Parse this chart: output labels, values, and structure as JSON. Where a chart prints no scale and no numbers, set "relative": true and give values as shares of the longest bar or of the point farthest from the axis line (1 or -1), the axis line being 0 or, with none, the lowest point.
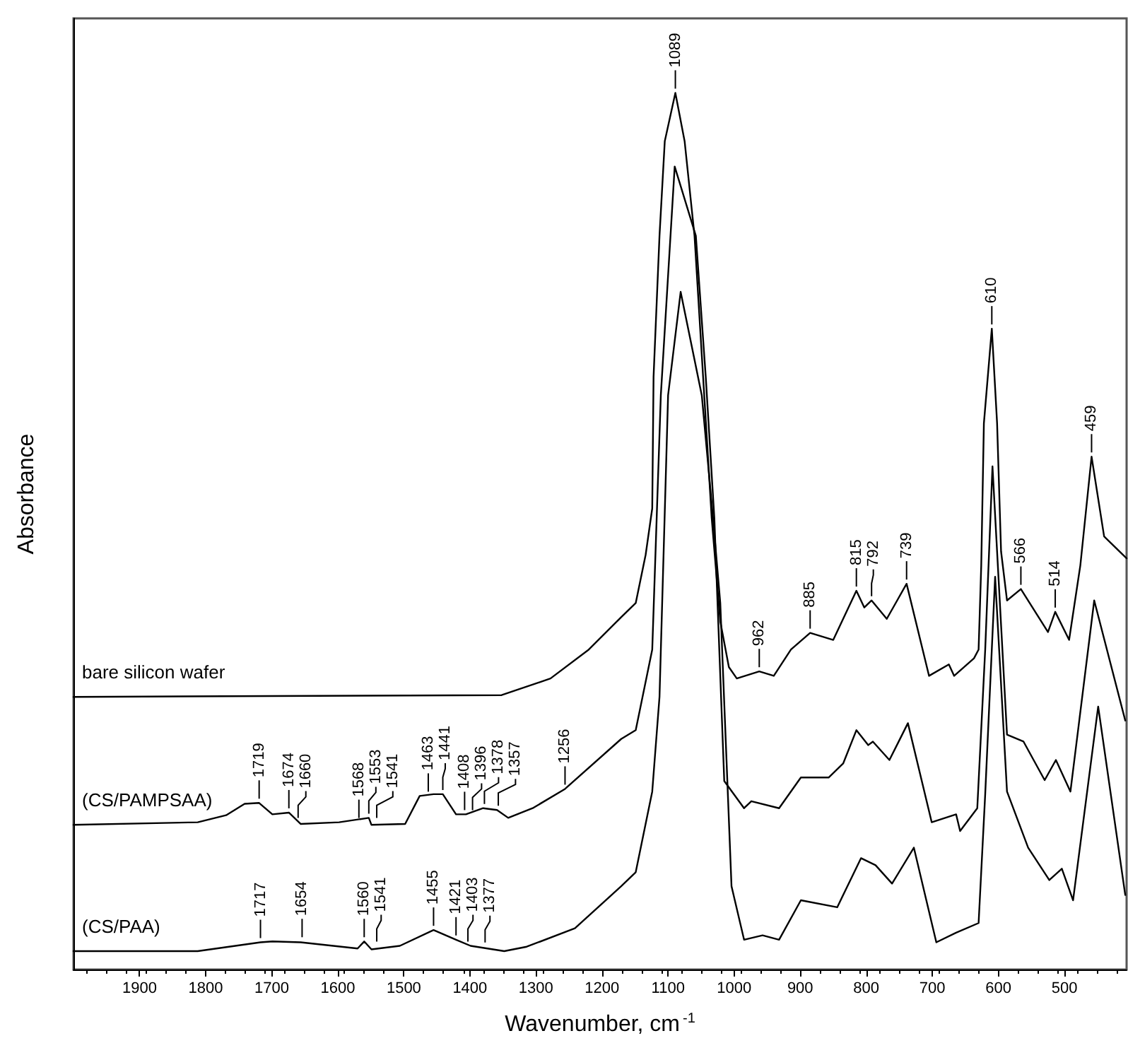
{
  "chart_data": {
    "type": "line",
    "relative": true,
    "xlabel": "Wavenumber, cm$^{-1}$",
    "ylabel": "Absorbance",
    "xlim": [
      2000,
      406
    ],
    "xticks": [
      1900,
      1800,
      1700,
      1600,
      1500,
      1400,
      1300,
      1200,
      1100,
      1000,
      900,
      800,
      700,
      600,
      500
    ],
    "legend": false,
    "grid": false,
    "marker": "none",
    "line_style": "solid",
    "series": [
      {
        "name": "bare silicon wafer",
        "color": "#000000",
        "x": [
          2000,
          1352,
          1278,
          1220,
          1171,
          1149,
          1134,
          1124,
          1122,
          1113,
          1105,
          1089,
          1075,
          1060,
          1047,
          1034,
          1021,
          1008,
          996,
          962,
          940,
          914,
          885,
          850,
          815,
          803,
          792,
          769,
          739,
          705,
          675,
          667,
          637,
          630,
          626,
          622,
          610,
          602,
          596,
          587,
          566,
          525,
          514,
          493,
          476,
          459,
          440,
          406
        ],
        "values": [
          0.311,
          0.313,
          0.332,
          0.365,
          0.402,
          0.418,
          0.473,
          0.526,
          0.676,
          0.837,
          0.945,
          1,
          0.945,
          0.837,
          0.676,
          0.515,
          0.397,
          0.345,
          0.332,
          0.34,
          0.335,
          0.365,
          0.384,
          0.376,
          0.432,
          0.413,
          0.421,
          0.4,
          0.44,
          0.335,
          0.348,
          0.335,
          0.355,
          0.365,
          0.461,
          0.623,
          0.731,
          0.623,
          0.477,
          0.421,
          0.434,
          0.385,
          0.408,
          0.376,
          0.461,
          0.585,
          0.494,
          0.469
        ]
      },
      {
        "name": "(CS/PAMPSAA)",
        "color": "#000000",
        "x": [
          2000,
          1812,
          1769,
          1741,
          1719,
          1699,
          1674,
          1656,
          1598,
          1553,
          1549,
          1498,
          1476,
          1455,
          1441,
          1421,
          1406,
          1380,
          1359,
          1342,
          1305,
          1256,
          1171,
          1149,
          1124,
          1111,
          1090,
          1058,
          1043,
          1030,
          1015,
          985,
          974,
          932,
          899,
          857,
          835,
          815,
          797,
          790,
          765,
          737,
          701,
          664,
          658,
          632,
          620,
          609,
          587,
          562,
          530,
          513,
          491,
          455,
          408
        ],
        "values": [
          0.165,
          0.168,
          0.176,
          0.189,
          0.19,
          0.177,
          0.179,
          0.166,
          0.168,
          0.173,
          0.165,
          0.166,
          0.198,
          0.2,
          0.2,
          0.177,
          0.177,
          0.184,
          0.182,
          0.173,
          0.184,
          0.206,
          0.263,
          0.273,
          0.365,
          0.655,
          0.916,
          0.837,
          0.676,
          0.515,
          0.215,
          0.184,
          0.192,
          0.184,
          0.219,
          0.219,
          0.235,
          0.273,
          0.256,
          0.26,
          0.239,
          0.281,
          0.168,
          0.177,
          0.158,
          0.184,
          0.365,
          0.574,
          0.268,
          0.26,
          0.216,
          0.239,
          0.203,
          0.421,
          0.284
        ]
      },
      {
        "name": "(CS/PAA)",
        "color": "#000000",
        "x": [
          2000,
          1812,
          1717,
          1699,
          1656,
          1570,
          1560,
          1549,
          1506,
          1455,
          1421,
          1399,
          1348,
          1314,
          1241,
          1171,
          1149,
          1124,
          1113,
          1100,
          1081,
          1049,
          1032,
          1021,
          1004,
          985,
          957,
          932,
          899,
          844,
          808,
          786,
          761,
          728,
          694,
          664,
          630,
          620,
          605,
          587,
          555,
          523,
          504,
          487,
          449,
          408
        ],
        "values": [
          0.021,
          0.021,
          0.031,
          0.032,
          0.031,
          0.024,
          0.032,
          0.023,
          0.027,
          0.045,
          0.034,
          0.027,
          0.021,
          0.026,
          0.047,
          0.095,
          0.111,
          0.203,
          0.311,
          0.655,
          0.773,
          0.655,
          0.515,
          0.418,
          0.095,
          0.034,
          0.039,
          0.034,
          0.079,
          0.071,
          0.127,
          0.119,
          0.098,
          0.139,
          0.031,
          0.042,
          0.053,
          0.2,
          0.448,
          0.203,
          0.139,
          0.102,
          0.115,
          0.079,
          0.3,
          0.085
        ]
      }
    ],
    "annotations": [
      {
        "text": "1089",
        "x": 1089,
        "y": 1
      },
      {
        "text": "962",
        "x": 962,
        "y": 0.34
      },
      {
        "text": "885",
        "x": 885,
        "y": 0.384
      },
      {
        "text": "815",
        "x": 815,
        "y": 0.432
      },
      {
        "text": "792",
        "x": 792,
        "y": 0.421
      },
      {
        "text": "739",
        "x": 739,
        "y": 0.44
      },
      {
        "text": "610",
        "x": 610,
        "y": 0.731
      },
      {
        "text": "566",
        "x": 566,
        "y": 0.434
      },
      {
        "text": "514",
        "x": 514,
        "y": 0.408
      },
      {
        "text": "459",
        "x": 459,
        "y": 0.585
      },
      {
        "text": "1719",
        "x": 1719,
        "y": 0.19
      },
      {
        "text": "1674",
        "x": 1674,
        "y": 0.179
      },
      {
        "text": "1660",
        "x": 1660,
        "y": 0.168
      },
      {
        "text": "1568",
        "x": 1568,
        "y": 0.168
      },
      {
        "text": "1553",
        "x": 1553,
        "y": 0.173
      },
      {
        "text": "1541",
        "x": 1541,
        "y": 0.168
      },
      {
        "text": "1463",
        "x": 1463,
        "y": 0.198
      },
      {
        "text": "1441",
        "x": 1441,
        "y": 0.2
      },
      {
        "text": "1408",
        "x": 1408,
        "y": 0.177
      },
      {
        "text": "1396",
        "x": 1396,
        "y": 0.177
      },
      {
        "text": "1378",
        "x": 1378,
        "y": 0.184
      },
      {
        "text": "1357",
        "x": 1357,
        "y": 0.182
      },
      {
        "text": "1256",
        "x": 1256,
        "y": 0.206
      },
      {
        "text": "1717",
        "x": 1717,
        "y": 0.031
      },
      {
        "text": "1654",
        "x": 1654,
        "y": 0.032
      },
      {
        "text": "1560",
        "x": 1560,
        "y": 0.032
      },
      {
        "text": "1541",
        "x": 1541,
        "y": 0.027
      },
      {
        "text": "1455",
        "x": 1455,
        "y": 0.045
      },
      {
        "text": "1421",
        "x": 1421,
        "y": 0.034
      },
      {
        "text": "1403",
        "x": 1403,
        "y": 0.027
      },
      {
        "text": "1377",
        "x": 1377,
        "y": 0.026
      }
    ]
  }
}
